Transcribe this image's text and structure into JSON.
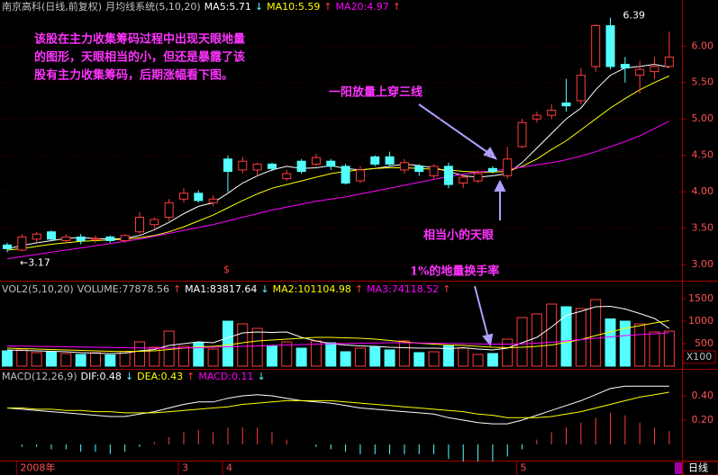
{
  "chart_data": [
    {
      "type": "candlestick",
      "title": "南京高科(日线,前复权)",
      "subtitle": "月均线系统(5,10,20)",
      "categories": [
        null,
        "2008年",
        null,
        null,
        null,
        null,
        null,
        null,
        null,
        null,
        null,
        null,
        "3",
        null,
        null,
        "4",
        null,
        null,
        null,
        null,
        null,
        null,
        null,
        null,
        null,
        null,
        null,
        null,
        null,
        null,
        null,
        null,
        null,
        null,
        null,
        "5",
        null,
        null,
        null,
        null,
        null,
        null,
        null,
        null,
        null,
        null
      ],
      "open": [
        3.27,
        3.2,
        3.35,
        3.45,
        3.33,
        3.38,
        3.35,
        3.38,
        3.33,
        3.45,
        3.55,
        3.65,
        3.9,
        3.98,
        3.85,
        4.45,
        4.3,
        4.3,
        4.38,
        4.18,
        4.42,
        4.38,
        4.42,
        4.35,
        4.15,
        4.48,
        4.48,
        4.3,
        4.35,
        4.22,
        4.35,
        4.12,
        4.15,
        4.32,
        4.22,
        4.62,
        5.0,
        5.05,
        5.22,
        5.25,
        5.72,
        6.28,
        5.75,
        5.6,
        5.65,
        5.72
      ],
      "high": [
        3.3,
        3.42,
        3.45,
        3.47,
        3.42,
        3.42,
        3.4,
        3.4,
        3.42,
        3.72,
        3.65,
        3.9,
        4.05,
        4.02,
        3.95,
        4.5,
        4.48,
        4.4,
        4.4,
        4.3,
        4.45,
        4.52,
        4.45,
        4.38,
        4.35,
        4.5,
        4.55,
        4.45,
        4.38,
        4.38,
        4.4,
        4.25,
        4.3,
        4.35,
        4.62,
        5.0,
        5.1,
        5.2,
        5.55,
        5.7,
        6.3,
        6.39,
        5.85,
        5.8,
        5.85,
        6.2
      ],
      "low": [
        3.17,
        3.18,
        3.3,
        3.32,
        3.3,
        3.28,
        3.3,
        3.3,
        3.3,
        3.42,
        3.5,
        3.6,
        3.85,
        3.85,
        3.8,
        4.0,
        4.25,
        4.22,
        4.28,
        4.15,
        4.25,
        4.35,
        4.3,
        4.1,
        4.12,
        4.35,
        4.35,
        4.25,
        4.22,
        4.18,
        4.05,
        4.05,
        4.12,
        4.25,
        4.18,
        4.6,
        4.95,
        5.0,
        5.1,
        5.2,
        5.65,
        5.68,
        5.5,
        5.35,
        5.55,
        5.7
      ],
      "close": [
        3.22,
        3.38,
        3.42,
        3.35,
        3.38,
        3.33,
        3.36,
        3.33,
        3.4,
        3.65,
        3.62,
        3.85,
        3.98,
        3.88,
        3.9,
        4.28,
        4.42,
        4.38,
        4.32,
        4.25,
        4.28,
        4.47,
        4.35,
        4.12,
        4.3,
        4.38,
        4.38,
        4.4,
        4.28,
        4.35,
        4.1,
        4.2,
        4.25,
        4.28,
        4.45,
        4.95,
        5.05,
        5.12,
        5.18,
        5.6,
        6.28,
        5.72,
        5.7,
        5.68,
        5.72,
        5.85
      ],
      "up_color": "#ff3c3c",
      "down_color": "#54ffff",
      "series": [
        {
          "name": "MA5:5.71",
          "arrow": "↓",
          "arrow_color": "#54ffff",
          "color": "#ffffff",
          "values": [
            3.22,
            3.26,
            3.3,
            3.33,
            3.36,
            3.37,
            3.36,
            3.35,
            3.36,
            3.4,
            3.48,
            3.58,
            3.7,
            3.8,
            3.85,
            3.98,
            4.12,
            4.22,
            4.3,
            4.35,
            4.32,
            4.33,
            4.36,
            4.32,
            4.3,
            4.32,
            4.35,
            4.38,
            4.36,
            4.33,
            4.28,
            4.22,
            4.2,
            4.22,
            4.25,
            4.4,
            4.6,
            4.8,
            5.0,
            5.15,
            5.4,
            5.6,
            5.7,
            5.72,
            5.75,
            5.71
          ]
        },
        {
          "name": "MA10:5.59",
          "arrow": "↑",
          "arrow_color": "#ff3c3c",
          "color": "#ffff00",
          "values": [
            3.2,
            3.22,
            3.25,
            3.28,
            3.3,
            3.32,
            3.33,
            3.34,
            3.35,
            3.37,
            3.4,
            3.45,
            3.52,
            3.6,
            3.68,
            3.78,
            3.88,
            3.97,
            4.05,
            4.1,
            4.15,
            4.2,
            4.25,
            4.28,
            4.3,
            4.32,
            4.33,
            4.33,
            4.32,
            4.31,
            4.3,
            4.28,
            4.27,
            4.27,
            4.28,
            4.35,
            4.45,
            4.58,
            4.7,
            4.85,
            5.0,
            5.15,
            5.28,
            5.4,
            5.5,
            5.59
          ]
        },
        {
          "name": "MA20:4.97",
          "arrow": "↑",
          "arrow_color": "#ff3c3c",
          "color": "#ff00ff",
          "values": [
            3.08,
            3.11,
            3.14,
            3.17,
            3.2,
            3.23,
            3.26,
            3.29,
            3.32,
            3.35,
            3.39,
            3.43,
            3.47,
            3.51,
            3.55,
            3.6,
            3.65,
            3.7,
            3.75,
            3.79,
            3.83,
            3.87,
            3.9,
            3.93,
            3.97,
            4.01,
            4.05,
            4.09,
            4.13,
            4.17,
            4.21,
            4.24,
            4.27,
            4.29,
            4.31,
            4.34,
            4.37,
            4.4,
            4.44,
            4.49,
            4.55,
            4.62,
            4.69,
            4.77,
            4.87,
            4.97
          ]
        }
      ],
      "ylim": [
        2.78,
        6.46
      ],
      "yticks": [
        {
          "value": 3,
          "label": "3.00"
        },
        {
          "value": 3.5,
          "label": "3.50"
        },
        {
          "value": 4,
          "label": "4.00"
        },
        {
          "value": 4.5,
          "label": "4.50"
        },
        {
          "value": 5,
          "label": "5.00"
        },
        {
          "value": 5.5,
          "label": "5.50"
        },
        {
          "value": 6,
          "label": "6.00"
        }
      ],
      "grid": true,
      "high_label": "6.39",
      "low_label": "←3.17",
      "marker": "$",
      "annotations": [
        "该股在主力收集筹码过程中出现天眼地量",
        "的图形，天眼相当的小，但还是暴露了该",
        "股有主力收集筹码，后期涨幅看下图。",
        "一阳放量上穿三线",
        "相当小的天眼",
        "1%的地量换手率"
      ]
    },
    {
      "type": "bar",
      "title": "VOL2(5,10,20)",
      "value_label": "VOLUME:77878.56",
      "value_arrow": "↑",
      "value_arrow_color": "#ff3c3c",
      "unit": "X100",
      "values": [
        340,
        380,
        300,
        320,
        280,
        260,
        300,
        250,
        330,
        540,
        420,
        780,
        440,
        520,
        380,
        1000,
        940,
        840,
        460,
        540,
        400,
        560,
        520,
        320,
        400,
        420,
        360,
        560,
        300,
        320,
        450,
        400,
        260,
        280,
        600,
        1080,
        1160,
        1380,
        1320,
        1280,
        1480,
        1050,
        1000,
        940,
        760,
        778.79
      ],
      "series": [
        {
          "name": "MA1:83817.64",
          "arrow": "↓",
          "arrow_color": "#54ffff",
          "color": "#ffffff",
          "values": [
            360,
            350,
            340,
            330,
            320,
            300,
            290,
            280,
            290,
            340,
            370,
            460,
            500,
            540,
            520,
            630,
            740,
            760,
            750,
            760,
            640,
            560,
            500,
            470,
            450,
            440,
            420,
            410,
            400,
            400,
            390,
            410,
            380,
            360,
            400,
            520,
            640,
            870,
            1130,
            1220,
            1320,
            1330,
            1270,
            1170,
            1060,
            838
          ]
        },
        {
          "name": "MA2:101104.98",
          "arrow": "↑",
          "arrow_color": "#ff3c3c",
          "color": "#ffff00",
          "values": [
            400,
            390,
            380,
            370,
            360,
            350,
            340,
            330,
            325,
            330,
            340,
            370,
            400,
            430,
            440,
            470,
            520,
            560,
            580,
            600,
            620,
            640,
            640,
            630,
            620,
            600,
            570,
            540,
            510,
            490,
            470,
            460,
            440,
            420,
            410,
            420,
            440,
            470,
            530,
            590,
            680,
            760,
            840,
            900,
            960,
            1011
          ]
        },
        {
          "name": "MA3:74118.52",
          "arrow": "↑",
          "arrow_color": "#ff3c3c",
          "color": "#ff00ff",
          "values": [
            450,
            445,
            440,
            435,
            430,
            425,
            420,
            415,
            410,
            405,
            400,
            400,
            405,
            410,
            420,
            430,
            440,
            450,
            460,
            470,
            480,
            490,
            500,
            505,
            510,
            515,
            520,
            520,
            515,
            510,
            505,
            500,
            495,
            490,
            490,
            495,
            510,
            530,
            560,
            590,
            620,
            650,
            680,
            700,
            720,
            741
          ]
        }
      ],
      "ylim": [
        0,
        1740
      ],
      "yticks": [
        500,
        1000,
        1500
      ]
    },
    {
      "type": "macd",
      "title": "MACD(12,26,9)",
      "bar_name": "MACD:0.11",
      "bar_arrow": "↓",
      "bar_arrow_color": "#54ffff",
      "bar_name_color": "#ff00ff",
      "up_color": "#ff3c3c",
      "down_color": "#54ffff",
      "values": [
        0,
        -0.02,
        -0.02,
        -0.04,
        -0.04,
        -0.06,
        -0.06,
        -0.08,
        -0.06,
        -0.02,
        0.02,
        0.06,
        0.1,
        0.12,
        0.1,
        0.14,
        0.14,
        0.14,
        0.1,
        0.04,
        0,
        -0.02,
        -0.04,
        -0.06,
        -0.08,
        -0.08,
        -0.08,
        -0.08,
        -0.08,
        -0.08,
        -0.12,
        -0.14,
        -0.14,
        -0.14,
        -0.1,
        -0.04,
        0.04,
        0.1,
        0.14,
        0.18,
        0.22,
        0.26,
        0.24,
        0.18,
        0.14,
        0.11
      ],
      "series": [
        {
          "name": "DIF:0.48",
          "arrow": "↓",
          "arrow_color": "#54ffff",
          "color": "#ffffff",
          "values": [
            0.3,
            0.29,
            0.28,
            0.27,
            0.26,
            0.25,
            0.24,
            0.23,
            0.23,
            0.25,
            0.27,
            0.3,
            0.33,
            0.35,
            0.35,
            0.38,
            0.4,
            0.41,
            0.4,
            0.38,
            0.36,
            0.35,
            0.34,
            0.32,
            0.3,
            0.29,
            0.28,
            0.27,
            0.26,
            0.25,
            0.22,
            0.2,
            0.18,
            0.17,
            0.17,
            0.2,
            0.24,
            0.28,
            0.32,
            0.36,
            0.41,
            0.46,
            0.48,
            0.48,
            0.48,
            0.48
          ]
        },
        {
          "name": "DEA:0.43",
          "arrow": "↑",
          "arrow_color": "#ff3c3c",
          "color": "#ffff00",
          "values": [
            0.3,
            0.3,
            0.29,
            0.29,
            0.28,
            0.28,
            0.27,
            0.27,
            0.26,
            0.26,
            0.26,
            0.27,
            0.28,
            0.29,
            0.3,
            0.31,
            0.33,
            0.34,
            0.35,
            0.36,
            0.36,
            0.36,
            0.36,
            0.35,
            0.34,
            0.33,
            0.32,
            0.31,
            0.3,
            0.29,
            0.28,
            0.27,
            0.25,
            0.24,
            0.22,
            0.22,
            0.22,
            0.23,
            0.25,
            0.27,
            0.3,
            0.33,
            0.36,
            0.39,
            0.41,
            0.43
          ]
        }
      ],
      "ylim": [
        -0.133,
        0.6
      ],
      "yticks": [
        {
          "value": 0.2,
          "label": "0.20"
        },
        {
          "value": 0.4,
          "label": "0.40"
        }
      ]
    }
  ],
  "footer": {
    "period": "日线"
  }
}
